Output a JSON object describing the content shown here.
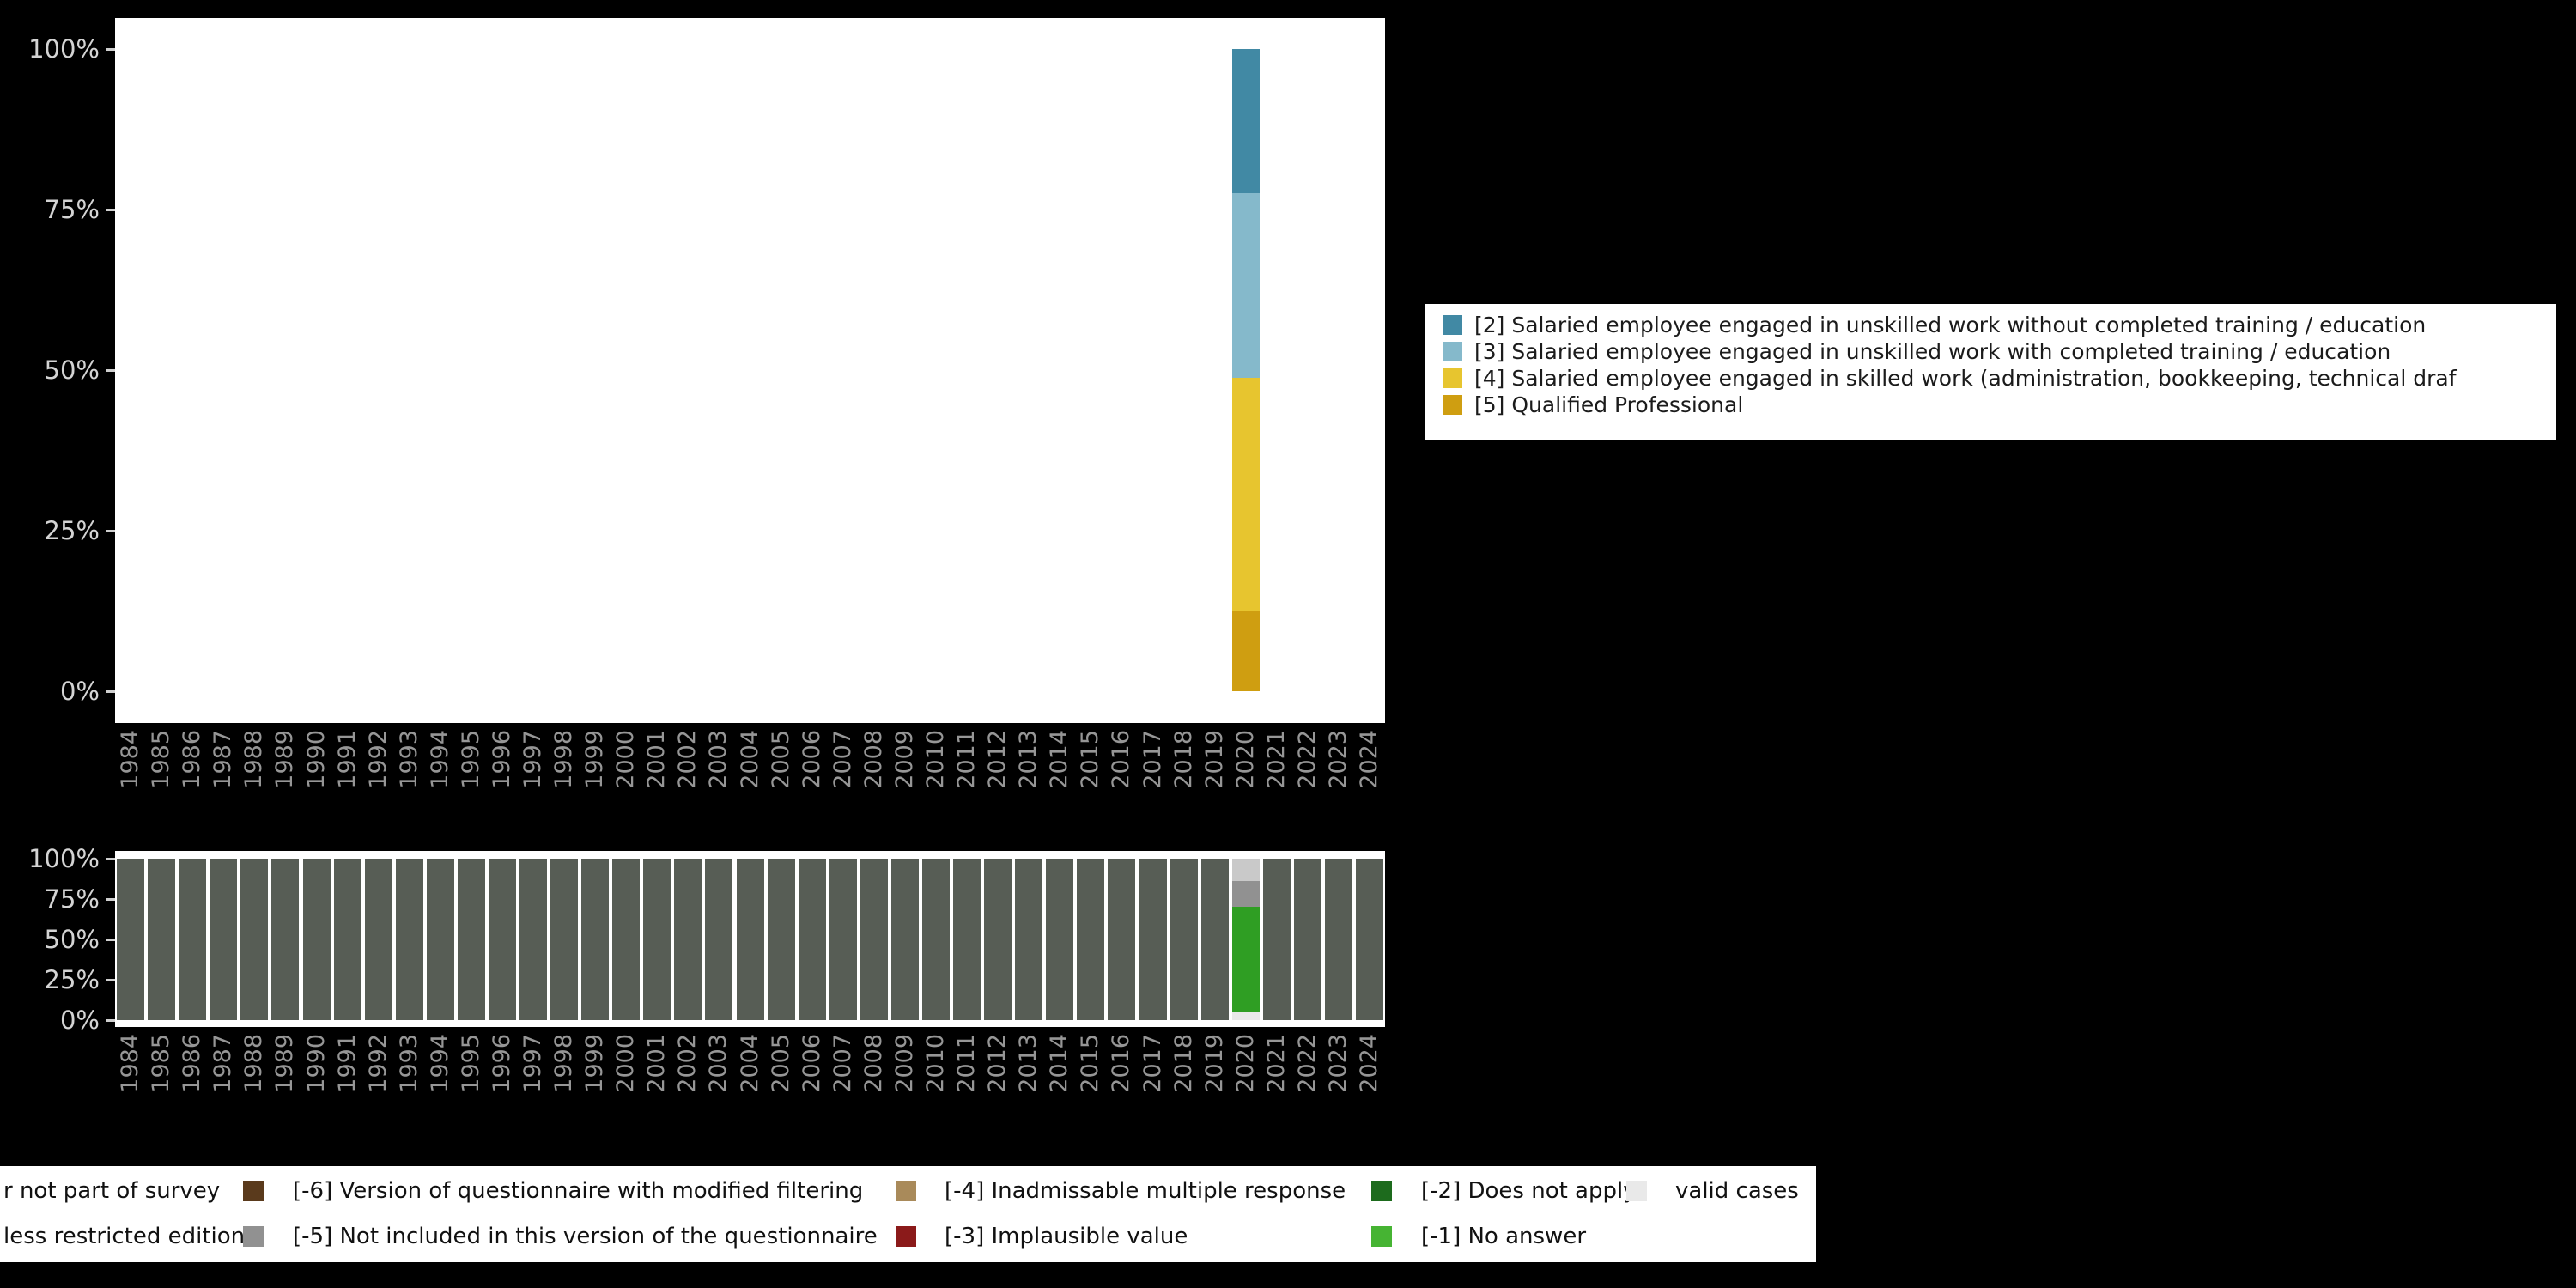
{
  "background_color": "#000000",
  "chart_data": [
    {
      "type": "bar",
      "stacked": true,
      "title": "",
      "xlabel": "",
      "ylabel": "",
      "x": [
        "1984",
        "1985",
        "1986",
        "1987",
        "1988",
        "1989",
        "1990",
        "1991",
        "1992",
        "1993",
        "1994",
        "1995",
        "1996",
        "1997",
        "1998",
        "1999",
        "2000",
        "2001",
        "2002",
        "2003",
        "2004",
        "2005",
        "2006",
        "2007",
        "2008",
        "2009",
        "2010",
        "2011",
        "2012",
        "2013",
        "2014",
        "2015",
        "2016",
        "2017",
        "2018",
        "2019",
        "2020",
        "2021",
        "2022",
        "2023",
        "2024"
      ],
      "ylim": [
        0,
        100
      ],
      "y_ticks": [
        "0%",
        "25%",
        "50%",
        "75%",
        "100%"
      ],
      "y_tick_values": [
        0,
        25,
        50,
        75,
        100
      ],
      "grid": false,
      "legend_position": "right",
      "series_bottom_to_top": [
        {
          "name": "[5] Qualified Professional",
          "color": "#cf9e11",
          "default": 0,
          "values": {
            "2020": 12.5
          }
        },
        {
          "name": "[4] Salaried employee engaged in skilled work (administration, bookkeeping, technical draf",
          "color": "#e7c52f",
          "default": 0,
          "values": {
            "2020": 36.3
          }
        },
        {
          "name": "[3] Salaried employee engaged in unskilled work with completed training / education",
          "color": "#85b9cb",
          "default": 0,
          "values": {
            "2020": 28.7
          }
        },
        {
          "name": "[2] Salaried employee engaged in unskilled work without completed training / education",
          "color": "#4189a4",
          "default": 0,
          "values": {
            "2020": 22.5
          }
        }
      ],
      "legend_order": [
        3,
        2,
        1,
        0
      ]
    },
    {
      "type": "bar",
      "stacked": true,
      "title": "",
      "xlabel": "",
      "ylabel": "",
      "x": [
        "1984",
        "1985",
        "1986",
        "1987",
        "1988",
        "1989",
        "1990",
        "1991",
        "1992",
        "1993",
        "1994",
        "1995",
        "1996",
        "1997",
        "1998",
        "1999",
        "2000",
        "2001",
        "2002",
        "2003",
        "2004",
        "2005",
        "2006",
        "2007",
        "2008",
        "2009",
        "2010",
        "2011",
        "2012",
        "2013",
        "2014",
        "2015",
        "2016",
        "2017",
        "2018",
        "2019",
        "2020",
        "2021",
        "2022",
        "2023",
        "2024"
      ],
      "ylim": [
        0,
        100
      ],
      "y_ticks": [
        "0%",
        "25%",
        "50%",
        "75%",
        "100%"
      ],
      "y_tick_values": [
        0,
        25,
        50,
        75,
        100
      ],
      "grid": false,
      "series_bottom_to_top": [
        {
          "name": "r not part of survey",
          "color": "#575d55",
          "default": 100,
          "values": {
            "2020": 0
          }
        },
        {
          "name": "valid cases",
          "color": "#e9e9e9",
          "default": 0,
          "values": {
            "2020": 5
          }
        },
        {
          "name": "[-1] No answer",
          "color": "#2f9e23",
          "default": 0,
          "values": {
            "2020": 65
          }
        },
        {
          "name": "[-5] Not included in this version of the questionnaire",
          "color": "#919191",
          "default": 0,
          "values": {
            "2020": 16
          }
        },
        {
          "name": "less restricted edition",
          "color": "#c9c9c9",
          "default": 0,
          "values": {
            "2020": 14
          }
        }
      ]
    }
  ],
  "missing_legend": {
    "rows": [
      [
        {
          "label": "r not part of survey",
          "color": "#575d55",
          "swatch_clipped": true
        },
        {
          "label": "[-6] Version of questionnaire with modified filtering",
          "color": "#5a3a1c"
        },
        {
          "label": "[-4] Inadmissable multiple response",
          "color": "#a98a5a"
        },
        {
          "label": "[-2] Does not apply",
          "color": "#1d6b1d"
        },
        {
          "label": "valid cases",
          "color": "#e9e9e9"
        }
      ],
      [
        {
          "label": "less restricted edition",
          "color": "#8f8f8f",
          "swatch_clipped": true
        },
        {
          "label": "[-5] Not included in this version of the questionnaire",
          "color": "#919191"
        },
        {
          "label": "[-3] Implausible value",
          "color": "#8b1a1a"
        },
        {
          "label": "[-1] No answer",
          "color": "#46b433"
        }
      ]
    ]
  }
}
